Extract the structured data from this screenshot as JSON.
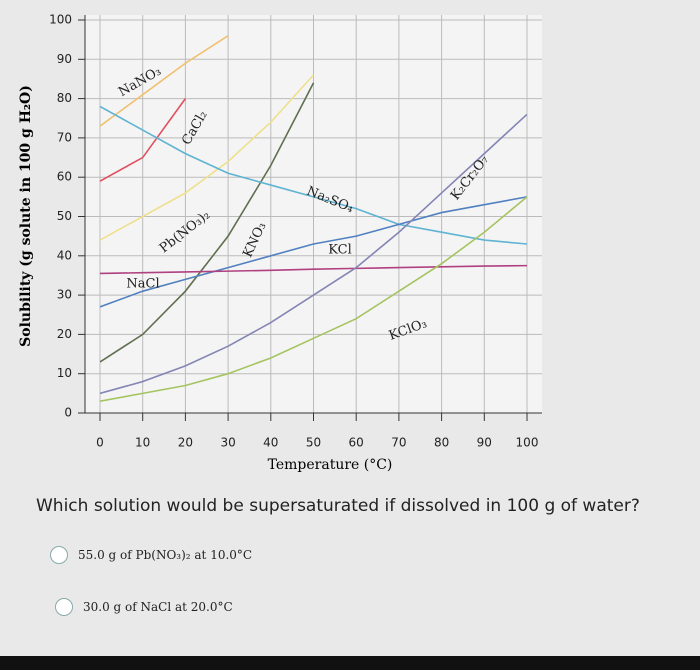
{
  "chart_data": {
    "type": "line",
    "xlabel": "Temperature (°C)",
    "ylabel": "Solubility (g solute in 100 g H₂O)",
    "x": [
      0,
      10,
      20,
      30,
      40,
      50,
      60,
      70,
      80,
      90,
      100
    ],
    "xlim": [
      0,
      100
    ],
    "ylim": [
      0,
      100
    ],
    "xticks": [
      0,
      10,
      20,
      30,
      40,
      50,
      60,
      70,
      80,
      90,
      100
    ],
    "yticks": [
      0,
      10,
      20,
      30,
      40,
      50,
      60,
      70,
      80,
      90,
      100
    ],
    "grid": true,
    "series": [
      {
        "name": "NaNO₃",
        "color": "#f0c070",
        "values": [
          73,
          81,
          89,
          96,
          null,
          null,
          null,
          null,
          null,
          null,
          null
        ]
      },
      {
        "name": "CaCl₂",
        "color": "#e05060",
        "values": [
          59,
          65,
          80,
          null,
          null,
          null,
          null,
          null,
          null,
          null,
          null
        ]
      },
      {
        "name": "Pb(NO₃)₂",
        "color": "#eee08c",
        "values": [
          44,
          50,
          56,
          64,
          74,
          86,
          null,
          null,
          null,
          null,
          null
        ]
      },
      {
        "name": "KNO₃",
        "color": "#5f6f4f",
        "values": [
          13,
          20,
          31,
          45,
          63,
          84,
          null,
          null,
          null,
          null,
          null
        ]
      },
      {
        "name": "Na₂SO₄",
        "color": "#5fb3d3",
        "values": [
          78,
          72,
          66,
          61,
          58,
          55,
          52,
          48,
          46,
          44,
          43
        ]
      },
      {
        "name": "KCl",
        "color": "#5080c0",
        "values": [
          27,
          31,
          34,
          37,
          40,
          43,
          45,
          48,
          51,
          53,
          55
        ]
      },
      {
        "name": "NaCl",
        "color": "#b04080",
        "values": [
          35.5,
          35.7,
          35.9,
          36.1,
          36.3,
          36.6,
          36.8,
          37,
          37.2,
          37.4,
          37.5
        ]
      },
      {
        "name": "KClO₃",
        "color": "#a5c460",
        "values": [
          3,
          5,
          7,
          10,
          14,
          19,
          24,
          31,
          38,
          46,
          55
        ]
      },
      {
        "name": "K₂Cr₂O₇",
        "color": "#8585b5",
        "values": [
          5,
          8,
          12,
          17,
          23,
          30,
          37,
          46,
          56,
          66,
          76
        ]
      }
    ]
  },
  "question": "Which solution would be supersaturated if dissolved in 100 g of water?",
  "options": [
    "55.0 g of Pb(NO₃)₂ at 10.0°C",
    "30.0 g of NaCl at 20.0°C"
  ]
}
